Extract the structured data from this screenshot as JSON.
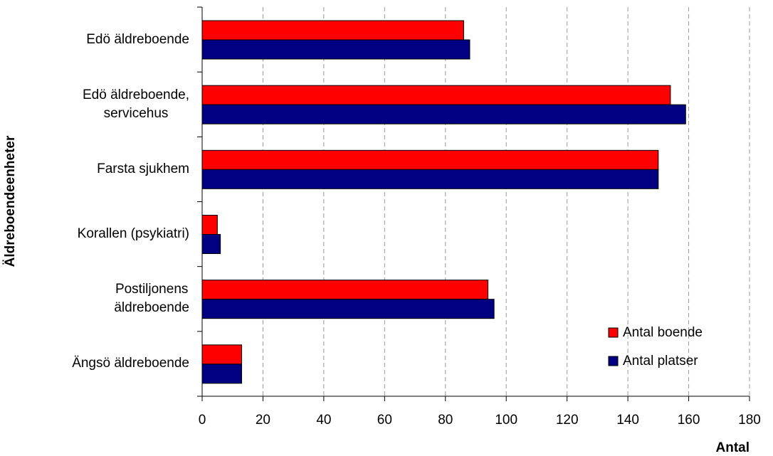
{
  "chart_data": {
    "type": "bar",
    "orientation": "horizontal",
    "x_label": "Antal",
    "y_label": "Äldreboendeenheter",
    "categories": [
      "Edö äldreboende",
      "Edö äldreboende,\nservicehus",
      "Farsta sjukhem",
      "Korallen (psykiatri)",
      "Postiljonens\näldreboende",
      "Ängsö äldreboende"
    ],
    "series": [
      {
        "name": "Antal boende",
        "color": "#ff0000",
        "values": [
          86,
          154,
          150,
          5,
          94,
          13
        ]
      },
      {
        "name": "Antal platser",
        "color": "#000080",
        "values": [
          88,
          159,
          150,
          6,
          96,
          13
        ]
      }
    ],
    "xlim": [
      0,
      180
    ],
    "xticks": [
      0,
      20,
      40,
      60,
      80,
      100,
      120,
      140,
      160,
      180
    ],
    "grid": true,
    "legend": "lower right"
  }
}
